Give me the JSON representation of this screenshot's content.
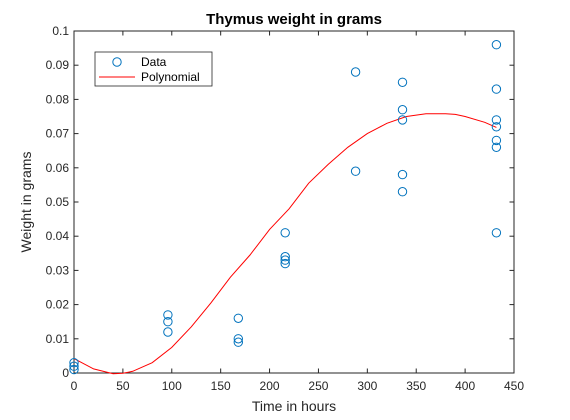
{
  "chart_data": {
    "type": "scatter",
    "title": "Thymus weight in grams",
    "xlabel": "Time in hours",
    "ylabel": "Weight in grams",
    "xlim": [
      0,
      450
    ],
    "ylim": [
      0,
      0.1
    ],
    "xticks": [
      "0",
      "50",
      "100",
      "150",
      "200",
      "250",
      "300",
      "350",
      "400",
      "450"
    ],
    "yticks": [
      "0",
      "0.01",
      "0.02",
      "0.03",
      "0.04",
      "0.05",
      "0.06",
      "0.07",
      "0.08",
      "0.09",
      "0.1"
    ],
    "grid": false,
    "legend_position": "top-left",
    "series": [
      {
        "name": "Data",
        "kind": "markers",
        "marker": "circle",
        "color": "#0072BD",
        "points": [
          [
            0,
            0.003
          ],
          [
            0,
            0.002
          ],
          [
            0,
            0.001
          ],
          [
            96,
            0.017
          ],
          [
            96,
            0.015
          ],
          [
            96,
            0.012
          ],
          [
            168,
            0.016
          ],
          [
            168,
            0.01
          ],
          [
            168,
            0.009
          ],
          [
            216,
            0.041
          ],
          [
            216,
            0.034
          ],
          [
            216,
            0.033
          ],
          [
            216,
            0.032
          ],
          [
            288,
            0.088
          ],
          [
            288,
            0.059
          ],
          [
            336,
            0.085
          ],
          [
            336,
            0.077
          ],
          [
            336,
            0.074
          ],
          [
            336,
            0.058
          ],
          [
            336,
            0.053
          ],
          [
            432,
            0.096
          ],
          [
            432,
            0.083
          ],
          [
            432,
            0.074
          ],
          [
            432,
            0.072
          ],
          [
            432,
            0.068
          ],
          [
            432,
            0.066
          ],
          [
            432,
            0.041
          ]
        ]
      },
      {
        "name": "Polynomial",
        "kind": "line",
        "color": "#FF0000",
        "points": [
          [
            0,
            0.0042
          ],
          [
            20,
            0.0012
          ],
          [
            40,
            -0.0002
          ],
          [
            50,
            -0.0001
          ],
          [
            60,
            0.0005
          ],
          [
            80,
            0.003
          ],
          [
            100,
            0.0075
          ],
          [
            120,
            0.0135
          ],
          [
            140,
            0.0205
          ],
          [
            160,
            0.028
          ],
          [
            180,
            0.0345
          ],
          [
            200,
            0.042
          ],
          [
            220,
            0.048
          ],
          [
            240,
            0.0555
          ],
          [
            260,
            0.061
          ],
          [
            280,
            0.066
          ],
          [
            300,
            0.07
          ],
          [
            320,
            0.073
          ],
          [
            340,
            0.075
          ],
          [
            360,
            0.0758
          ],
          [
            380,
            0.0758
          ],
          [
            390,
            0.0756
          ],
          [
            400,
            0.075
          ],
          [
            420,
            0.0733
          ],
          [
            432,
            0.0718
          ]
        ]
      }
    ]
  }
}
